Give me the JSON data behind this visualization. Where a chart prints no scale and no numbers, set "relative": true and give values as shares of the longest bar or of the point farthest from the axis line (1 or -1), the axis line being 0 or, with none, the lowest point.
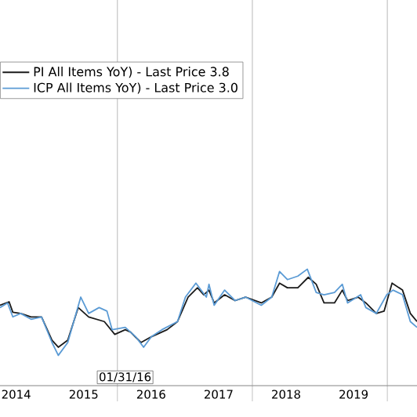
{
  "chart_data": {
    "type": "line",
    "relative": true,
    "legend": "top left",
    "grid": "x",
    "xlim": [
      2014.26,
      2020.44
    ],
    "xticks": [
      {
        "value": 2014.5,
        "label": "2014"
      },
      {
        "value": 2015.5,
        "label": "2015"
      },
      {
        "value": 2016,
        "label": null
      },
      {
        "value": 2016.5,
        "label": "2016"
      },
      {
        "value": 2017.5,
        "label": "2017"
      },
      {
        "value": 2018,
        "label": null
      },
      {
        "value": 2018.5,
        "label": "2018"
      },
      {
        "value": 2019.5,
        "label": "2019"
      },
      {
        "value": 2020,
        "label": null
      }
    ],
    "annotations": [
      "01/31/16"
    ],
    "series": [
      {
        "name": "PI All Items YoY) - Last Price 3.8",
        "color": "#1a1a1a",
        "x": [
          2014.26,
          2014.395,
          2014.45,
          2014.566,
          2014.721,
          2014.876,
          2015.031,
          2015.124,
          2015.264,
          2015.419,
          2015.574,
          2015.806,
          2015.961,
          2016.116,
          2016.194,
          2016.349,
          2016.504,
          2016.736,
          2016.891,
          2017.047,
          2017.186,
          2017.279,
          2017.357,
          2017.434,
          2017.589,
          2017.744,
          2017.899,
          2018.132,
          2018.287,
          2018.403,
          2018.519,
          2018.674,
          2018.829,
          2018.946,
          2019.062,
          2019.217,
          2019.333,
          2019.411,
          2019.566,
          2019.682,
          2019.837,
          2019.953,
          2020.07,
          2020.225,
          2020.341,
          2020.44
        ],
        "values": [
          0.69,
          0.72,
          0.63,
          0.62,
          0.59,
          0.59,
          0.39,
          0.33,
          0.39,
          0.67,
          0.59,
          0.55,
          0.44,
          0.48,
          0.46,
          0.37,
          0.42,
          0.48,
          0.55,
          0.76,
          0.84,
          0.78,
          0.82,
          0.71,
          0.78,
          0.73,
          0.76,
          0.71,
          0.76,
          0.88,
          0.84,
          0.84,
          0.93,
          0.87,
          0.71,
          0.71,
          0.82,
          0.73,
          0.76,
          0.71,
          0.62,
          0.64,
          0.88,
          0.82,
          0.62,
          0.55
        ]
      },
      {
        "name": "ICP All Items YoY) - Last Price 3.0",
        "color": "#5b9bd5",
        "x": [
          2014.26,
          2014.372,
          2014.45,
          2014.566,
          2014.721,
          2014.876,
          2015.031,
          2015.124,
          2015.264,
          2015.457,
          2015.574,
          2015.729,
          2015.845,
          2015.922,
          2016.116,
          2016.271,
          2016.388,
          2016.504,
          2016.659,
          2016.891,
          2017.008,
          2017.163,
          2017.318,
          2017.357,
          2017.434,
          2017.589,
          2017.744,
          2017.899,
          2018.132,
          2018.287,
          2018.403,
          2018.519,
          2018.674,
          2018.814,
          2018.946,
          2019.062,
          2019.217,
          2019.333,
          2019.411,
          2019.605,
          2019.682,
          2019.837,
          2019.992,
          2020.085,
          2020.225,
          2020.341,
          2020.44
        ],
        "values": [
          0.67,
          0.71,
          0.59,
          0.62,
          0.57,
          0.59,
          0.37,
          0.26,
          0.37,
          0.76,
          0.62,
          0.67,
          0.64,
          0.48,
          0.5,
          0.42,
          0.33,
          0.42,
          0.48,
          0.55,
          0.76,
          0.88,
          0.76,
          0.87,
          0.69,
          0.82,
          0.73,
          0.76,
          0.69,
          0.76,
          0.98,
          0.91,
          0.94,
          1,
          0.8,
          0.78,
          0.8,
          0.87,
          0.71,
          0.78,
          0.67,
          0.62,
          0.78,
          0.82,
          0.78,
          0.55,
          0.5
        ]
      }
    ]
  }
}
